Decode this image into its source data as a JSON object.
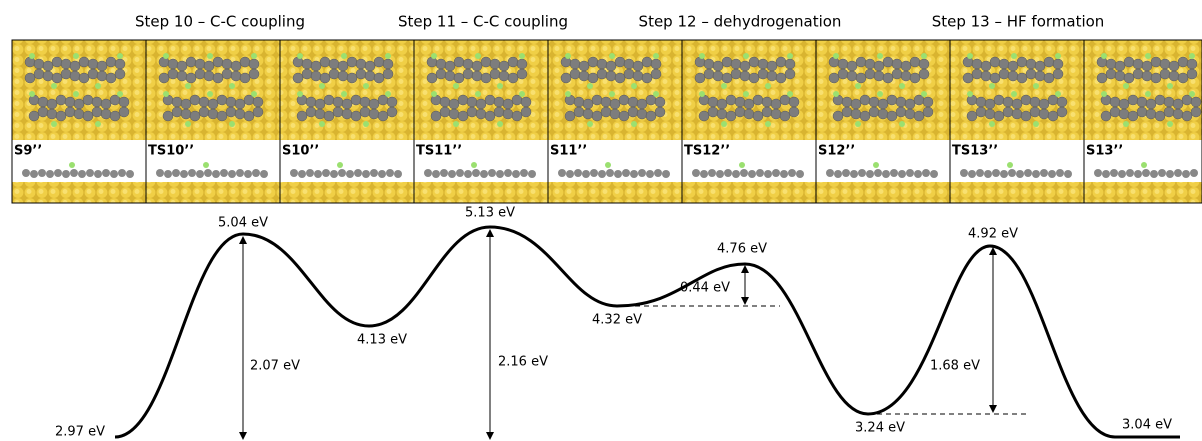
{
  "step_titles": [
    "Step 10 – C-C coupling",
    "Step 11 – C-C coupling",
    "Step 12 – dehydrogenation",
    "Step 13 – HF formation"
  ],
  "states": [
    "S9’’",
    "TS10’’",
    "S10’’",
    "TS11’’",
    "S11’’",
    "TS12’’",
    "S12’’",
    "TS13’’",
    "S13’’"
  ],
  "energies": [
    "2.97 eV",
    "5.04 eV",
    "4.13 eV",
    "5.13 eV",
    "4.32 eV",
    "4.76 eV",
    "3.24 eV",
    "4.92 eV",
    "3.04 eV"
  ],
  "barriers": [
    "2.07 eV",
    "2.16 eV",
    "0.44 eV",
    "1.68 eV"
  ]
}
